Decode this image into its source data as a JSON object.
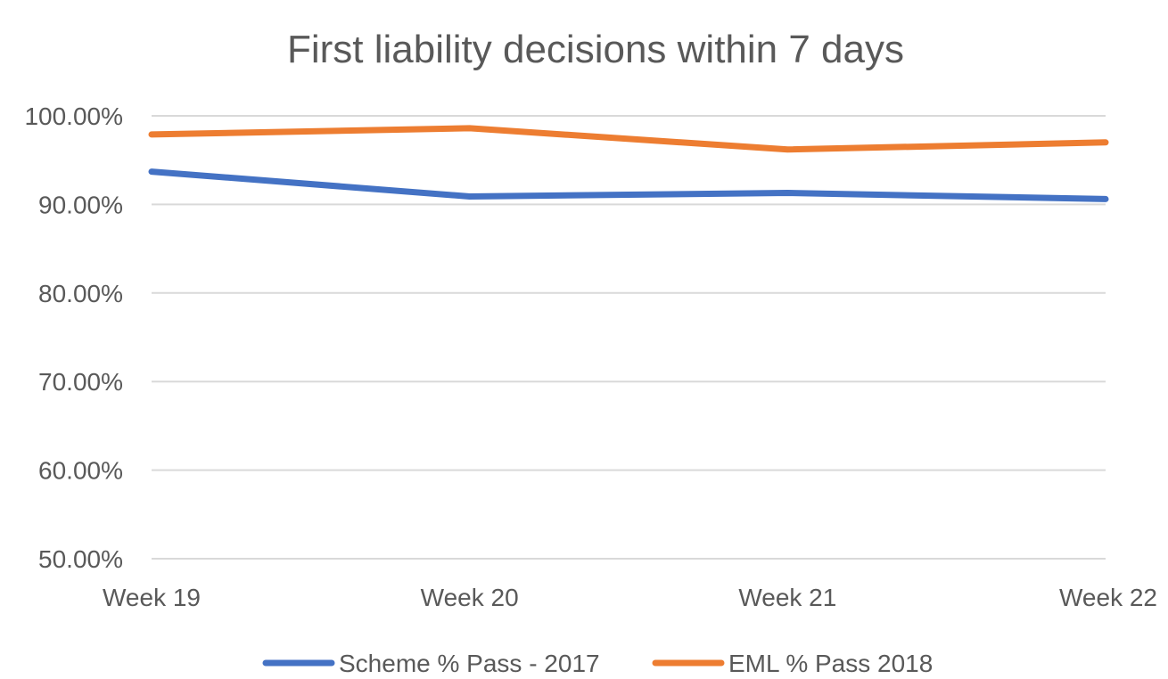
{
  "chart_data": {
    "type": "line",
    "title": "First liability decisions within 7 days",
    "categories": [
      "Week 19",
      "Week 20",
      "Week 21",
      "Week 22"
    ],
    "ylim": [
      0.5,
      1.0
    ],
    "yticks": [
      {
        "value": 1.0,
        "label": "100.00%"
      },
      {
        "value": 0.9,
        "label": "90.00%"
      },
      {
        "value": 0.8,
        "label": "80.00%"
      },
      {
        "value": 0.7,
        "label": "70.00%"
      },
      {
        "value": 0.6,
        "label": "60.00%"
      },
      {
        "value": 0.5,
        "label": "50.00%"
      }
    ],
    "grid": true,
    "legend_position": "bottom",
    "series": [
      {
        "name": "Scheme % Pass - 2017",
        "color": "#4472C4",
        "values": [
          0.937,
          0.909,
          0.913,
          0.906
        ]
      },
      {
        "name": "EML % Pass 2018",
        "color": "#ED7D31",
        "values": [
          0.979,
          0.986,
          0.962,
          0.97
        ]
      }
    ]
  }
}
